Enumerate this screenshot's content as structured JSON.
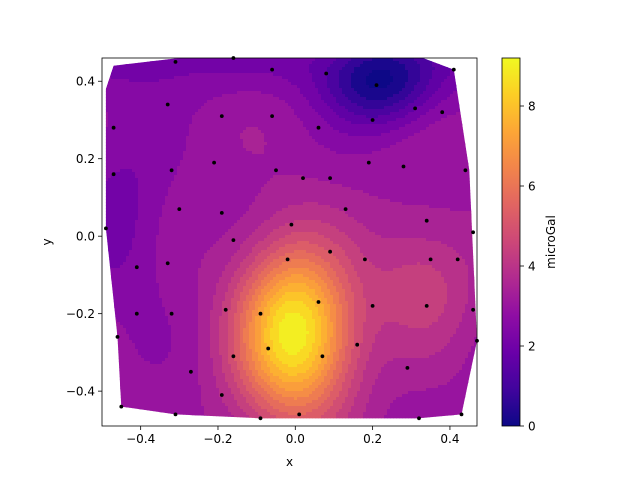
{
  "chart_data": {
    "type": "heatmap",
    "subtype": "filled-contour with scattered sample points",
    "title": "",
    "xlabel": "x",
    "ylabel": "y",
    "xlim": [
      -0.5,
      0.47
    ],
    "ylim": [
      -0.49,
      0.46
    ],
    "xticks": [
      -0.4,
      -0.2,
      0.0,
      0.2,
      0.4
    ],
    "xtick_labels": [
      "−0.4",
      "−0.2",
      "0.0",
      "0.2",
      "0.4"
    ],
    "yticks": [
      -0.4,
      -0.2,
      0.0,
      0.2,
      0.4
    ],
    "ytick_labels": [
      "−0.4",
      "−0.2",
      "0.0",
      "0.2",
      "0.4"
    ],
    "colormap": "plasma",
    "colorbar": {
      "label": "microGal",
      "range": [
        0,
        9.2
      ],
      "ticks": [
        0,
        2,
        4,
        6,
        8
      ],
      "tick_labels": [
        "0",
        "2",
        "4",
        "6",
        "8"
      ]
    },
    "value_field": {
      "units": "microGal",
      "base": 3.0,
      "peak": {
        "x": 0.0,
        "y": -0.25,
        "value": 9.2
      },
      "low": {
        "x": 0.22,
        "y": 0.39,
        "value": 0.4
      }
    },
    "points": [
      {
        "x": -0.31,
        "y": 0.45
      },
      {
        "x": -0.16,
        "y": 0.46
      },
      {
        "x": -0.06,
        "y": 0.43
      },
      {
        "x": 0.08,
        "y": 0.42
      },
      {
        "x": 0.21,
        "y": 0.39
      },
      {
        "x": 0.41,
        "y": 0.43
      },
      {
        "x": -0.33,
        "y": 0.34
      },
      {
        "x": -0.47,
        "y": 0.28
      },
      {
        "x": -0.19,
        "y": 0.31
      },
      {
        "x": -0.06,
        "y": 0.31
      },
      {
        "x": 0.06,
        "y": 0.28
      },
      {
        "x": 0.2,
        "y": 0.3
      },
      {
        "x": 0.31,
        "y": 0.33
      },
      {
        "x": 0.38,
        "y": 0.32
      },
      {
        "x": -0.47,
        "y": 0.16
      },
      {
        "x": -0.32,
        "y": 0.17
      },
      {
        "x": -0.21,
        "y": 0.19
      },
      {
        "x": -0.05,
        "y": 0.17
      },
      {
        "x": 0.02,
        "y": 0.15
      },
      {
        "x": 0.09,
        "y": 0.15
      },
      {
        "x": 0.19,
        "y": 0.19
      },
      {
        "x": 0.28,
        "y": 0.18
      },
      {
        "x": 0.44,
        "y": 0.17
      },
      {
        "x": -0.3,
        "y": 0.07
      },
      {
        "x": -0.19,
        "y": 0.06
      },
      {
        "x": -0.16,
        "y": -0.01
      },
      {
        "x": -0.01,
        "y": 0.03
      },
      {
        "x": 0.13,
        "y": 0.07
      },
      {
        "x": 0.34,
        "y": 0.04
      },
      {
        "x": -0.49,
        "y": 0.02
      },
      {
        "x": 0.46,
        "y": 0.01
      },
      {
        "x": -0.41,
        "y": -0.08
      },
      {
        "x": -0.33,
        "y": -0.07
      },
      {
        "x": -0.02,
        "y": -0.06
      },
      {
        "x": 0.09,
        "y": -0.04
      },
      {
        "x": 0.18,
        "y": -0.06
      },
      {
        "x": 0.35,
        "y": -0.06
      },
      {
        "x": 0.42,
        "y": -0.06
      },
      {
        "x": -0.41,
        "y": -0.2
      },
      {
        "x": -0.32,
        "y": -0.2
      },
      {
        "x": -0.18,
        "y": -0.19
      },
      {
        "x": -0.09,
        "y": -0.2
      },
      {
        "x": 0.06,
        "y": -0.17
      },
      {
        "x": 0.2,
        "y": -0.18
      },
      {
        "x": 0.34,
        "y": -0.18
      },
      {
        "x": 0.46,
        "y": -0.19
      },
      {
        "x": -0.46,
        "y": -0.26
      },
      {
        "x": -0.16,
        "y": -0.31
      },
      {
        "x": -0.07,
        "y": -0.29
      },
      {
        "x": 0.07,
        "y": -0.31
      },
      {
        "x": 0.16,
        "y": -0.28
      },
      {
        "x": -0.27,
        "y": -0.35
      },
      {
        "x": 0.29,
        "y": -0.34
      },
      {
        "x": -0.19,
        "y": -0.41
      },
      {
        "x": -0.45,
        "y": -0.44
      },
      {
        "x": -0.31,
        "y": -0.46
      },
      {
        "x": -0.09,
        "y": -0.47
      },
      {
        "x": 0.01,
        "y": -0.46
      },
      {
        "x": 0.32,
        "y": -0.47
      },
      {
        "x": 0.43,
        "y": -0.46
      },
      {
        "x": 0.47,
        "y": -0.27
      }
    ],
    "hull": [
      [
        -0.47,
        0.44
      ],
      [
        -0.3,
        0.46
      ],
      [
        0.1,
        0.46
      ],
      [
        0.33,
        0.46
      ],
      [
        0.41,
        0.43
      ],
      [
        0.45,
        0.17
      ],
      [
        0.47,
        -0.27
      ],
      [
        0.43,
        -0.46
      ],
      [
        0.32,
        -0.47
      ],
      [
        0.01,
        -0.47
      ],
      [
        -0.09,
        -0.47
      ],
      [
        -0.31,
        -0.46
      ],
      [
        -0.45,
        -0.44
      ],
      [
        -0.46,
        -0.26
      ],
      [
        -0.49,
        0.02
      ],
      [
        -0.49,
        0.38
      ]
    ]
  }
}
